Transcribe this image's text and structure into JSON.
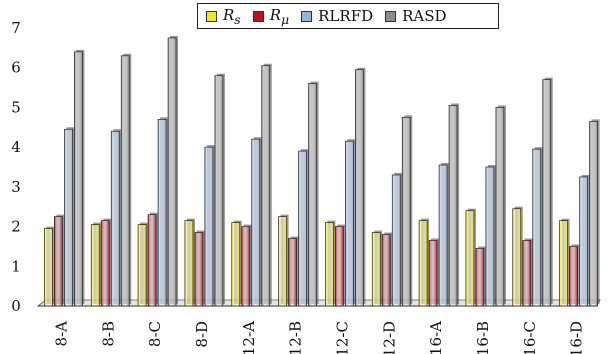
{
  "chart_data": {
    "type": "bar",
    "title": "",
    "xlabel": "",
    "ylabel": "",
    "ylim": [
      0,
      7
    ],
    "yticks": [
      "0",
      "1",
      "2",
      "3",
      "4",
      "5",
      "6",
      "7"
    ],
    "grid": false,
    "legend_position": "top-center",
    "categories": [
      "8-A",
      "8-B",
      "8-C",
      "8-D",
      "12-A",
      "12-B",
      "12-C",
      "12-D",
      "16-A",
      "16-B",
      "16-C",
      "16-D"
    ],
    "series": [
      {
        "name": "Rs",
        "color": "#f4ec00",
        "values": [
          1.95,
          2.05,
          2.05,
          2.15,
          2.1,
          2.25,
          2.1,
          1.85,
          2.15,
          2.4,
          2.45,
          2.15
        ]
      },
      {
        "name": "Rμ",
        "color": "#c0101a",
        "values": [
          2.25,
          2.15,
          2.3,
          1.85,
          2.0,
          1.7,
          2.0,
          1.8,
          1.65,
          1.45,
          1.65,
          1.5
        ]
      },
      {
        "name": "RLRFD",
        "color": "#8fb4e8",
        "values": [
          4.45,
          4.4,
          4.7,
          4.0,
          4.2,
          3.9,
          4.15,
          3.3,
          3.55,
          3.5,
          3.95,
          3.25
        ]
      },
      {
        "name": "RASD",
        "color": "#8c8c8c",
        "values": [
          6.4,
          6.3,
          6.75,
          5.8,
          6.05,
          5.6,
          5.95,
          4.75,
          5.05,
          5.0,
          5.7,
          4.65
        ]
      }
    ]
  },
  "legend": {
    "items": [
      {
        "main": "R",
        "sub": "s",
        "color": "#f4ec00"
      },
      {
        "main": "R",
        "sub": "μ",
        "color": "#c0101a"
      },
      {
        "main": "RLRFD",
        "sub": "",
        "color": "#8fb4e8"
      },
      {
        "main": "RASD",
        "sub": "",
        "color": "#8c8c8c"
      }
    ]
  }
}
